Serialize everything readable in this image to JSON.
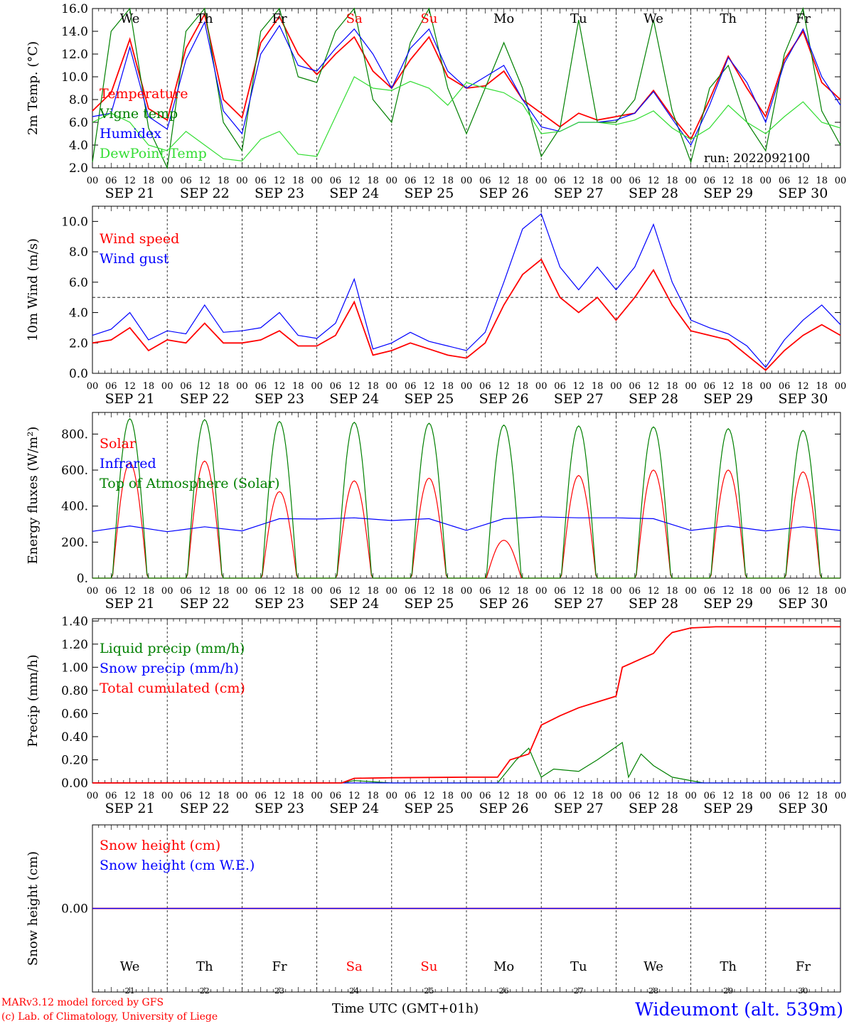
{
  "run_label": "run: 2022092100",
  "footer": {
    "credit_line1": "MARv3.12 model forced by GFS",
    "credit_line2": "(c) Lab. of Climatology, University of Liege",
    "xlabel": "Time UTC (GMT+01h)",
    "station": "Wideumont (alt. 539m)"
  },
  "days": [
    {
      "dow": "We",
      "date": "SEP 21",
      "num": "21",
      "weekend": false
    },
    {
      "dow": "Th",
      "date": "SEP 22",
      "num": "22",
      "weekend": false
    },
    {
      "dow": "Fr",
      "date": "SEP 23",
      "num": "23",
      "weekend": false
    },
    {
      "dow": "Sa",
      "date": "SEP 24",
      "num": "24",
      "weekend": true
    },
    {
      "dow": "Su",
      "date": "SEP 25",
      "num": "25",
      "weekend": true
    },
    {
      "dow": "Mo",
      "date": "SEP 26",
      "num": "26",
      "weekend": false
    },
    {
      "dow": "Tu",
      "date": "SEP 27",
      "num": "27",
      "weekend": false
    },
    {
      "dow": "We",
      "date": "SEP 28",
      "num": "28",
      "weekend": false
    },
    {
      "dow": "Th",
      "date": "SEP 29",
      "num": "29",
      "weekend": false
    },
    {
      "dow": "Fr",
      "date": "SEP 30",
      "num": "30",
      "weekend": false
    }
  ],
  "hour_labels": [
    "00",
    "06",
    "12",
    "18"
  ],
  "colors": {
    "red": "#ff0000",
    "darkgreen": "#008000",
    "blue": "#0000ff",
    "lightgreen": "#33dd33",
    "purple": "#800080",
    "weekend": "#ff0000"
  },
  "chart_data": [
    {
      "id": "temp",
      "type": "line",
      "ylabel": "2m Temp. (°C)",
      "ylim": [
        2,
        16
      ],
      "yticks": [
        2,
        4,
        6,
        8,
        10,
        12,
        14,
        16
      ],
      "ytick_labels": [
        "2.0",
        "4.0",
        "6.0",
        "8.0",
        "10.0",
        "12.0",
        "14.0",
        "16.0"
      ],
      "show_dow": true,
      "x_unit": "hours since SEP 21 00 UTC",
      "series": [
        {
          "name": "Temperature",
          "color": "#ff0000",
          "x": [
            0,
            6,
            12,
            18,
            24,
            30,
            36,
            42,
            48,
            54,
            60,
            66,
            72,
            78,
            84,
            90,
            96,
            102,
            108,
            114,
            120,
            126,
            132,
            138,
            144,
            150,
            156,
            162,
            168,
            174,
            180,
            186,
            192,
            198,
            204,
            210,
            216,
            222,
            228,
            234,
            240
          ],
          "y": [
            7.0,
            8.6,
            13.3,
            7.2,
            6.2,
            12.5,
            15.5,
            8.0,
            6.4,
            13.0,
            15.3,
            12.0,
            10.2,
            12.0,
            13.5,
            10.5,
            9.0,
            11.5,
            13.5,
            10.0,
            9.0,
            9.2,
            10.5,
            8.0,
            6.8,
            5.6,
            6.8,
            6.2,
            6.5,
            6.8,
            8.8,
            6.5,
            4.5,
            8.0,
            11.8,
            9.0,
            6.5,
            11.5,
            14.0,
            9.5,
            8.0
          ]
        },
        {
          "name": "Vigne temp",
          "color": "#008000",
          "x": [
            0,
            6,
            12,
            18,
            24,
            30,
            36,
            42,
            48,
            54,
            60,
            66,
            72,
            78,
            84,
            90,
            96,
            102,
            108,
            114,
            120,
            126,
            132,
            138,
            144,
            150,
            156,
            162,
            168,
            174,
            180,
            186,
            192,
            198,
            204,
            210,
            216,
            222,
            228,
            234,
            240
          ],
          "y": [
            2.5,
            14.0,
            16.0,
            5.5,
            2.0,
            14.0,
            16.0,
            6.0,
            3.5,
            14.0,
            16.0,
            10.0,
            9.5,
            14.0,
            16.0,
            8.0,
            6.0,
            13.0,
            16.0,
            9.0,
            5.0,
            9.0,
            13.0,
            9.0,
            3.0,
            5.5,
            15.0,
            6.0,
            6.0,
            8.0,
            15.0,
            7.0,
            2.5,
            9.0,
            11.0,
            6.0,
            3.5,
            12.0,
            16.0,
            7.0,
            4.0
          ]
        },
        {
          "name": "Humidex",
          "color": "#0000ff",
          "x": [
            0,
            6,
            12,
            18,
            24,
            30,
            36,
            42,
            48,
            54,
            60,
            66,
            72,
            78,
            84,
            90,
            96,
            102,
            108,
            114,
            120,
            126,
            132,
            138,
            144,
            150,
            156,
            162,
            168,
            174,
            180,
            186,
            192,
            198,
            204,
            210,
            216,
            222,
            228,
            234,
            240
          ],
          "y": [
            6.5,
            6.8,
            12.6,
            6.5,
            5.4,
            11.5,
            14.8,
            7.0,
            5.0,
            12.0,
            14.5,
            11.0,
            10.5,
            12.5,
            14.2,
            12.0,
            9.0,
            12.5,
            14.2,
            10.5,
            9.0,
            10.0,
            11.0,
            8.0,
            5.6,
            5.2,
            6.0,
            6.0,
            6.2,
            6.8,
            8.7,
            6.3,
            4.0,
            7.5,
            11.7,
            9.5,
            6.0,
            11.2,
            14.2,
            10.0,
            7.5
          ]
        },
        {
          "name": "DewPoint Temp",
          "color": "#33dd33",
          "x": [
            0,
            6,
            12,
            18,
            24,
            30,
            36,
            42,
            48,
            54,
            60,
            66,
            72,
            78,
            84,
            90,
            96,
            102,
            108,
            114,
            120,
            126,
            132,
            138,
            144,
            150,
            156,
            162,
            168,
            174,
            180,
            186,
            192,
            198,
            204,
            210,
            216,
            222,
            228,
            234,
            240
          ],
          "y": [
            6.0,
            6.8,
            6.0,
            4.0,
            3.5,
            5.2,
            4.0,
            2.8,
            2.6,
            4.5,
            5.2,
            3.2,
            3.0,
            6.5,
            10.0,
            9.0,
            8.8,
            9.6,
            9.0,
            7.5,
            9.5,
            9.0,
            8.6,
            7.6,
            5.0,
            5.2,
            6.0,
            6.0,
            5.8,
            6.2,
            7.0,
            5.5,
            4.5,
            5.5,
            7.5,
            6.0,
            5.0,
            6.5,
            7.8,
            6.0,
            5.5
          ]
        }
      ]
    },
    {
      "id": "wind",
      "type": "line",
      "ylabel": "10m Wind (m/s)",
      "ylim": [
        0,
        11
      ],
      "yticks": [
        0,
        2,
        4,
        6,
        8,
        10
      ],
      "ytick_labels": [
        "0.0",
        "2.0",
        "4.0",
        "6.0",
        "8.0",
        "10.0"
      ],
      "hline": 5,
      "x_unit": "hours since SEP 21 00 UTC",
      "series": [
        {
          "name": "Wind speed",
          "color": "#ff0000",
          "x": [
            0,
            6,
            12,
            18,
            24,
            30,
            36,
            42,
            48,
            54,
            60,
            66,
            72,
            78,
            84,
            90,
            96,
            102,
            108,
            114,
            120,
            126,
            132,
            138,
            144,
            150,
            156,
            162,
            168,
            174,
            180,
            186,
            192,
            198,
            204,
            210,
            216,
            222,
            228,
            234,
            240
          ],
          "y": [
            2.0,
            2.2,
            3.0,
            1.5,
            2.2,
            2.0,
            3.3,
            2.0,
            2.0,
            2.2,
            2.8,
            1.8,
            1.8,
            2.5,
            4.7,
            1.2,
            1.5,
            2.0,
            1.6,
            1.2,
            1.0,
            2.0,
            4.5,
            6.5,
            7.5,
            5.0,
            4.0,
            5.0,
            3.5,
            5.0,
            6.8,
            4.5,
            2.8,
            2.5,
            2.2,
            1.2,
            0.2,
            1.5,
            2.5,
            3.2,
            2.5
          ]
        },
        {
          "name": "Wind gust",
          "color": "#0000ff",
          "x": [
            0,
            6,
            12,
            18,
            24,
            30,
            36,
            42,
            48,
            54,
            60,
            66,
            72,
            78,
            84,
            90,
            96,
            102,
            108,
            114,
            120,
            126,
            132,
            138,
            144,
            150,
            156,
            162,
            168,
            174,
            180,
            186,
            192,
            198,
            204,
            210,
            216,
            222,
            228,
            234,
            240
          ],
          "y": [
            2.5,
            2.9,
            4.0,
            2.2,
            2.8,
            2.6,
            4.5,
            2.7,
            2.8,
            3.0,
            4.0,
            2.5,
            2.3,
            3.3,
            6.2,
            1.6,
            2.0,
            2.7,
            2.1,
            1.8,
            1.5,
            2.7,
            6.0,
            9.5,
            10.5,
            7.0,
            5.5,
            7.0,
            5.5,
            7.0,
            9.8,
            6.0,
            3.5,
            3.0,
            2.6,
            1.8,
            0.4,
            2.2,
            3.5,
            4.5,
            3.2
          ]
        }
      ]
    },
    {
      "id": "energy",
      "type": "line",
      "ylabel": "Energy fluxes (W/m²)",
      "ylim": [
        0,
        920
      ],
      "yticks": [
        0,
        200,
        400,
        600,
        800
      ],
      "ytick_labels": [
        "0.",
        "200.",
        "400.",
        "600.",
        "800."
      ],
      "x_unit": "hours since SEP 21 00 UTC",
      "series": [
        {
          "name": "Solar",
          "color": "#ff0000",
          "type": "daily_peak",
          "day_peaks": [
            640,
            650,
            480,
            540,
            555,
            210,
            570,
            600,
            600,
            590
          ]
        },
        {
          "name": "Infrared",
          "color": "#0000ff",
          "x": [
            0,
            12,
            24,
            36,
            48,
            60,
            72,
            84,
            96,
            108,
            120,
            132,
            144,
            156,
            168,
            180,
            192,
            204,
            216,
            228,
            240
          ],
          "y": [
            260,
            290,
            258,
            285,
            262,
            330,
            328,
            335,
            320,
            330,
            265,
            330,
            340,
            335,
            335,
            330,
            265,
            290,
            262,
            285,
            265
          ]
        },
        {
          "name": "Top of Atmosphere (Solar)",
          "color": "#008000",
          "type": "daily_peak",
          "day_peaks": [
            885,
            880,
            870,
            865,
            860,
            850,
            845,
            840,
            830,
            820
          ]
        }
      ]
    },
    {
      "id": "precip",
      "type": "line",
      "ylabel": "Precip (mm/h)",
      "ylim": [
        0,
        1.42
      ],
      "yticks": [
        0,
        0.2,
        0.4,
        0.6,
        0.8,
        1.0,
        1.2,
        1.4
      ],
      "ytick_labels": [
        "0.00",
        "0.20",
        "0.40",
        "0.60",
        "0.80",
        "1.00",
        "1.20",
        "1.40"
      ],
      "x_unit": "hours since SEP 21 00 UTC",
      "series": [
        {
          "name": "Liquid precip (mm/h)",
          "color": "#008000",
          "x": [
            0,
            80,
            84,
            90,
            96,
            130,
            136,
            140,
            144,
            148,
            156,
            162,
            170,
            172,
            176,
            180,
            186,
            196,
            240
          ],
          "y": [
            0,
            0,
            0.02,
            0.01,
            0,
            0,
            0.2,
            0.3,
            0.05,
            0.12,
            0.1,
            0.2,
            0.35,
            0.05,
            0.25,
            0.15,
            0.05,
            0,
            0
          ]
        },
        {
          "name": "Snow precip (mm/h)",
          "color": "#0000ff",
          "x": [
            0,
            240
          ],
          "y": [
            0,
            0
          ]
        },
        {
          "name": "Total cumulated (cm)",
          "color": "#ff0000",
          "x": [
            0,
            80,
            84,
            96,
            120,
            130,
            134,
            140,
            144,
            150,
            156,
            162,
            168,
            170,
            180,
            184,
            186,
            192,
            200,
            210,
            240
          ],
          "y": [
            0,
            0,
            0.04,
            0.045,
            0.05,
            0.05,
            0.2,
            0.25,
            0.5,
            0.58,
            0.65,
            0.7,
            0.75,
            1.0,
            1.12,
            1.25,
            1.3,
            1.34,
            1.35,
            1.35,
            1.35
          ]
        }
      ]
    },
    {
      "id": "snow",
      "type": "line",
      "ylabel": "Snow height (cm)",
      "ylim": [
        -1,
        1
      ],
      "yticks": [
        0
      ],
      "ytick_labels": [
        "0.00"
      ],
      "show_bottom_days": true,
      "x_unit": "hours since SEP 21 00 UTC",
      "series": [
        {
          "name": "Snow height (cm)",
          "color": "#ff0000",
          "x": [
            0,
            240
          ],
          "y": [
            0,
            0
          ]
        },
        {
          "name": "Snow height (cm W.E.)",
          "color": "#0000ff",
          "x": [
            0,
            240
          ],
          "y": [
            0,
            0
          ]
        }
      ]
    }
  ]
}
